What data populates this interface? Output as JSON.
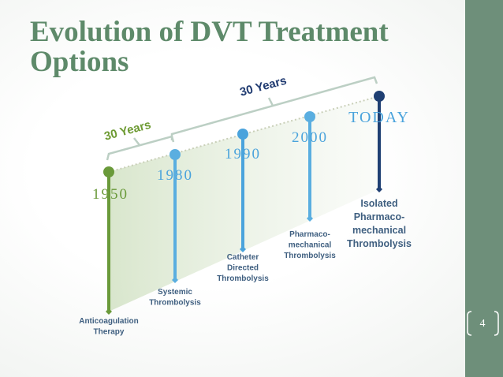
{
  "title_lines": [
    "Evolution of DVT Treatment",
    "Options"
  ],
  "spans": [
    "30 Years",
    "30 Years"
  ],
  "milestones": [
    {
      "year": "1950",
      "label": [
        "Anticoagulation",
        "Therapy"
      ]
    },
    {
      "year": "1980",
      "label": [
        "Systemic",
        "Thrombolysis"
      ]
    },
    {
      "year": "1990",
      "label": [
        "Catheter",
        "Directed",
        "Thrombolysis"
      ]
    },
    {
      "year": "2000",
      "label": [
        "Pharmaco-",
        "mechanical",
        "Thrombolysis"
      ]
    },
    {
      "year": "TODAY",
      "label": [
        "Isolated",
        "Pharmaco-",
        "mechanical",
        "Thrombolysis"
      ]
    }
  ],
  "page_number": "4"
}
